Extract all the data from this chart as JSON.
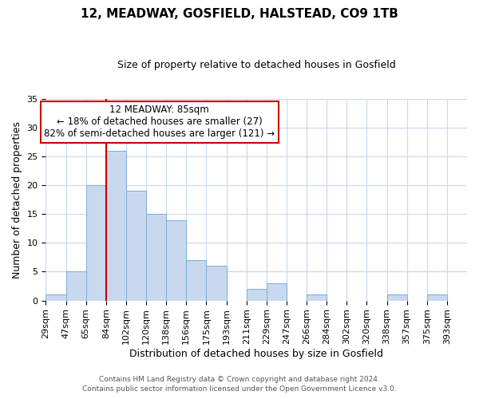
{
  "title": "12, MEADWAY, GOSFIELD, HALSTEAD, CO9 1TB",
  "subtitle": "Size of property relative to detached houses in Gosfield",
  "xlabel": "Distribution of detached houses by size in Gosfield",
  "ylabel": "Number of detached properties",
  "footer_line1": "Contains HM Land Registry data © Crown copyright and database right 2024.",
  "footer_line2": "Contains public sector information licensed under the Open Government Licence v3.0.",
  "bin_labels": [
    "29sqm",
    "47sqm",
    "65sqm",
    "84sqm",
    "102sqm",
    "120sqm",
    "138sqm",
    "156sqm",
    "175sqm",
    "193sqm",
    "211sqm",
    "229sqm",
    "247sqm",
    "266sqm",
    "284sqm",
    "302sqm",
    "320sqm",
    "338sqm",
    "357sqm",
    "375sqm",
    "393sqm"
  ],
  "bar_heights": [
    1,
    5,
    20,
    26,
    19,
    15,
    14,
    7,
    6,
    0,
    2,
    3,
    0,
    1,
    0,
    0,
    0,
    1,
    0,
    1,
    0
  ],
  "bar_color": "#c8d9ef",
  "bar_edge_color": "#7eadd4",
  "marker_bin_index": 3,
  "marker_label": "12 MEADWAY: 85sqm",
  "annotation_line1": "← 18% of detached houses are smaller (27)",
  "annotation_line2": "82% of semi-detached houses are larger (121) →",
  "annotation_box_edge": "#cc0000",
  "annotation_box_face": "#ffffff",
  "vline_color": "#cc0000",
  "ylim": [
    0,
    35
  ],
  "yticks": [
    0,
    5,
    10,
    15,
    20,
    25,
    30,
    35
  ],
  "background_color": "#ffffff",
  "grid_color": "#c8d8ea",
  "title_fontsize": 11,
  "subtitle_fontsize": 9,
  "ylabel_fontsize": 9,
  "xlabel_fontsize": 9,
  "tick_fontsize": 8,
  "footer_fontsize": 6.5,
  "footer_color": "#555555"
}
